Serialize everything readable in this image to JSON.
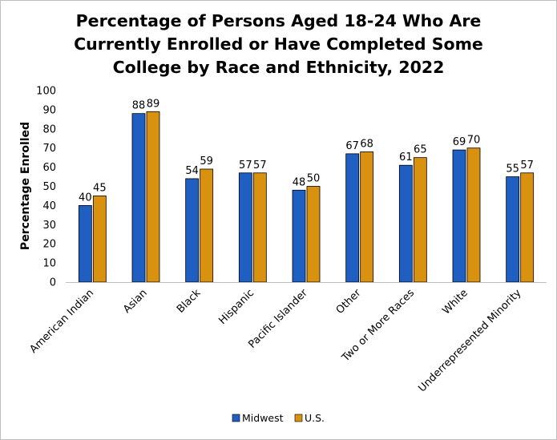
{
  "chart_data": {
    "type": "bar",
    "title_lines": [
      "Percentage of Persons Aged 18-24 Who Are",
      "Currently Enrolled or Have Completed Some",
      "College by Race and Ethnicity, 2022"
    ],
    "ylabel": "Percentage Enrolled",
    "xlabel": "",
    "ylim": [
      0,
      100
    ],
    "yticks": [
      0,
      10,
      20,
      30,
      40,
      50,
      60,
      70,
      80,
      90,
      100
    ],
    "grid": false,
    "legend_position": "bottom",
    "categories": [
      "American Indian",
      "Asian",
      "Black",
      "Hispanic",
      "Pacific Islander",
      "Other",
      "Two or More Races",
      "White",
      "Underrepresented Minority"
    ],
    "series": [
      {
        "name": "Midwest",
        "color": "#1f5fc1",
        "values": [
          40,
          88,
          54,
          57,
          48,
          67,
          61,
          69,
          55
        ],
        "labels": [
          "40",
          "88",
          "54",
          "57",
          "48",
          "67",
          "61",
          "69",
          "55"
        ]
      },
      {
        "name": "U.S.",
        "color": "#d9920f",
        "values": [
          45,
          89,
          59,
          57,
          50,
          68,
          65,
          70,
          57
        ],
        "labels": [
          "45",
          "89",
          "59",
          "57",
          "50",
          "68",
          "65",
          "70",
          "57"
        ]
      }
    ]
  }
}
